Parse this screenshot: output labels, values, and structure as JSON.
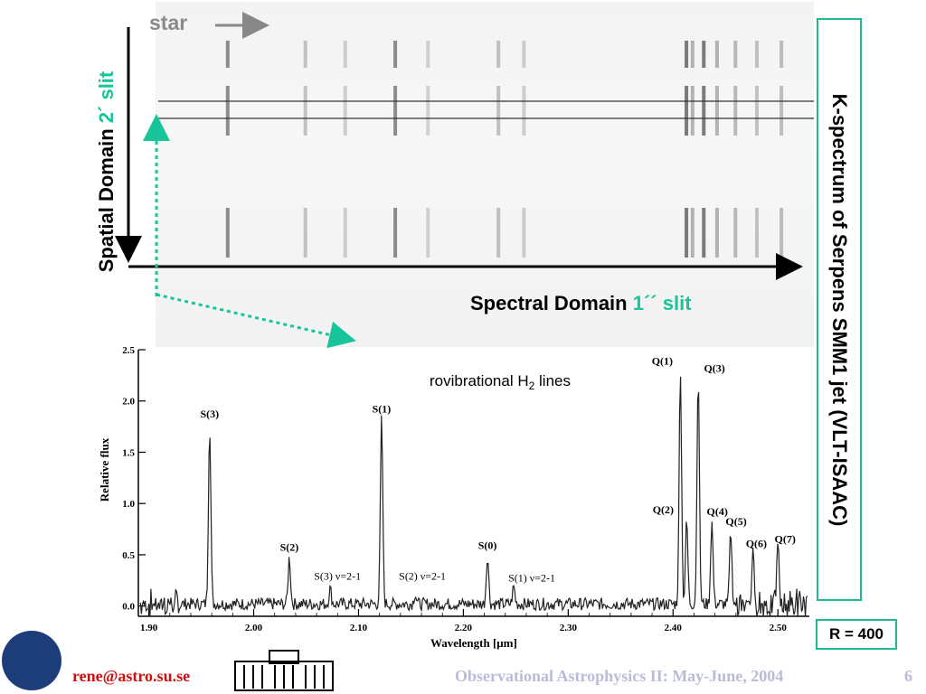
{
  "slide": {
    "star_label": "star",
    "spatial_label": "Spatial Domain",
    "spatial_slit": "2´ slit",
    "spectral_label": "Spectral Domain",
    "spectral_slit": "1´´ slit",
    "title_vertical": "K-spectrum of Serpens SMM1 jet (VLT-ISAAC)",
    "resolution": "R = 400",
    "email": "rene@astro.su.se",
    "course": "Observational Astrophysics II: May-June, 2004",
    "page_number": "6",
    "colors": {
      "accent_green": "#18c49a",
      "email_red": "#cc1010",
      "footer_lavender": "#b9bcd8"
    }
  },
  "chart_data": {
    "type": "line",
    "title": "rovibrational H",
    "title_sub": "2",
    "title_suffix": " lines",
    "xlabel": "Wavelength [μm]",
    "ylabel": "Relative flux",
    "xlim": [
      1.89,
      2.53
    ],
    "ylim": [
      -0.1,
      2.5
    ],
    "xticks": [
      1.9,
      2.0,
      2.1,
      2.2,
      2.3,
      2.4,
      2.5
    ],
    "xtick_labels": [
      "1.90",
      "2.00",
      "2.10",
      "2.20",
      "2.30",
      "2.40",
      "2.50"
    ],
    "yticks": [
      0.0,
      0.5,
      1.0,
      1.5,
      2.0,
      2.5
    ],
    "ytick_labels": [
      "0.0",
      "0.5",
      "1.0",
      "1.5",
      "2.0",
      "2.5"
    ],
    "lines": [
      {
        "label": "S(3)",
        "x": 1.958,
        "peak": 1.75
      },
      {
        "label": "S(2)",
        "x": 2.034,
        "peak": 0.45
      },
      {
        "label": "S(3) ν=2-1",
        "x": 2.073,
        "peak": 0.15
      },
      {
        "label": "S(1)",
        "x": 2.122,
        "peak": 1.8
      },
      {
        "label": "S(2) ν=2-1",
        "x": 2.154,
        "peak": 0.1
      },
      {
        "label": "S(0)",
        "x": 2.223,
        "peak": 0.47
      },
      {
        "label": "S(1) ν=2-1",
        "x": 2.248,
        "peak": 0.17
      },
      {
        "label": "Q(1)",
        "x": 2.407,
        "peak": 2.3
      },
      {
        "label": "Q(2)",
        "x": 2.413,
        "peak": 0.8
      },
      {
        "label": "Q(3)",
        "x": 2.424,
        "peak": 2.25
      },
      {
        "label": "Q(4)",
        "x": 2.437,
        "peak": 0.8
      },
      {
        "label": "Q(5)",
        "x": 2.455,
        "peak": 0.7
      },
      {
        "label": "Q(6)",
        "x": 2.476,
        "peak": 0.45
      },
      {
        "label": "Q(7)",
        "x": 2.5,
        "peak": 0.55
      }
    ]
  }
}
